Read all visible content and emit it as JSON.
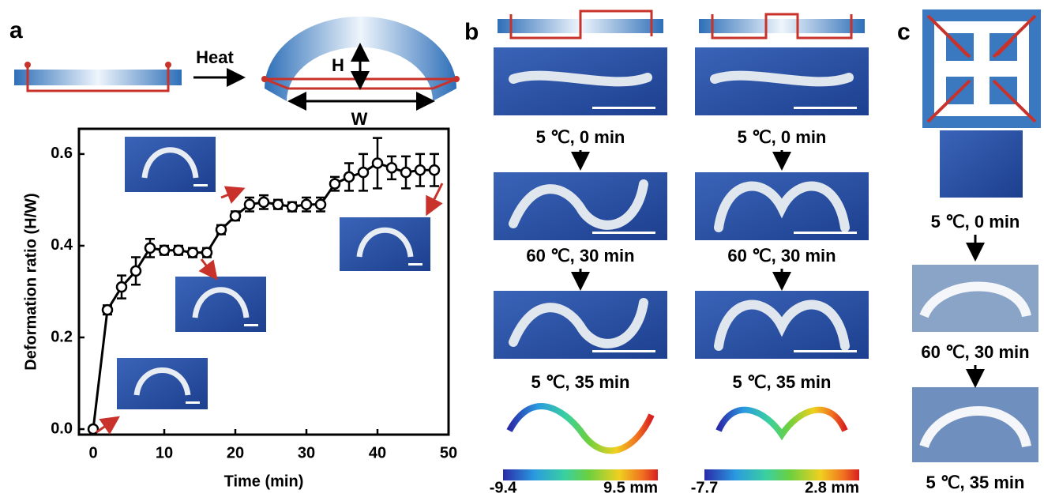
{
  "chart_data": {
    "type": "line",
    "x_label": "Time (min)",
    "y_label": "Deformation ratio (H/W)",
    "x": [
      0,
      2,
      4,
      6,
      8,
      10,
      12,
      14,
      16,
      18,
      20,
      22,
      24,
      26,
      28,
      30,
      32,
      34,
      36,
      38,
      40,
      42,
      44,
      46,
      48
    ],
    "series": [
      {
        "color": "#000000",
        "values": [
          0.0,
          0.26,
          0.31,
          0.345,
          0.395,
          0.39,
          0.39,
          0.385,
          0.385,
          0.435,
          0.465,
          0.49,
          0.495,
          0.49,
          0.485,
          0.49,
          0.49,
          0.535,
          0.55,
          0.56,
          0.58,
          0.57,
          0.56,
          0.565,
          0.565
        ],
        "errors": [
          0,
          0.01,
          0.025,
          0.03,
          0.02,
          0.01,
          0.01,
          0.01,
          0.01,
          0.01,
          0.01,
          0.015,
          0.015,
          0.01,
          0.01,
          0.015,
          0.015,
          0.015,
          0.03,
          0.04,
          0.055,
          0.025,
          0.035,
          0.035,
          0.035
        ]
      }
    ],
    "xlim": [
      -2,
      50
    ],
    "ylim": [
      -0.012,
      0.655
    ],
    "xticks": [
      0,
      10,
      20,
      30,
      40,
      50
    ],
    "yticks": [
      {
        "value": 0,
        "label": "0.0"
      },
      0.2,
      0.4,
      0.6
    ]
  },
  "figure": {
    "panel_a": {
      "label": "a",
      "heat": "Heat",
      "h": "H",
      "w": "W"
    },
    "panel_b": {
      "label": "b",
      "columns": [
        {
          "captions": [
            "5 ℃, 0 min",
            "60 ℃, 30 min",
            "5 ℃, 35 min"
          ],
          "scale_min": "-9.4",
          "scale_max": "9.5 mm"
        },
        {
          "captions": [
            "5 ℃, 0 min",
            "60 ℃, 30 min",
            "5 ℃, 35 min"
          ],
          "scale_min": "-7.7",
          "scale_max": "2.8 mm"
        }
      ]
    },
    "panel_c": {
      "label": "c",
      "captions": [
        "5 ℃, 0 min",
        "60 ℃, 30 min",
        "5 ℃, 35 min"
      ]
    }
  }
}
